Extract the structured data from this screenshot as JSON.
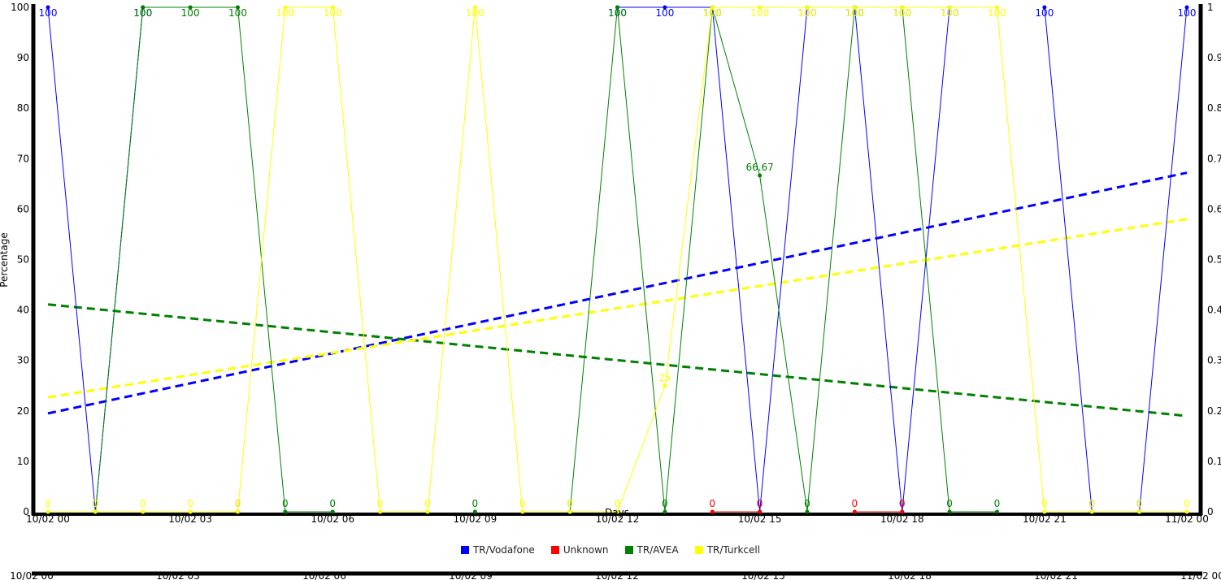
{
  "chart_data": {
    "type": "line",
    "ylabel": "Percentage",
    "xlabel": "Days",
    "ylim": [
      0,
      100
    ],
    "y2lim": [
      0,
      1
    ],
    "yticks": [
      0,
      10,
      20,
      30,
      40,
      50,
      60,
      70,
      80,
      90,
      100
    ],
    "y2ticks": [
      "0",
      "0.1",
      "0.2",
      "0.3",
      "0.4",
      "0.5",
      "0.6",
      "0.7",
      "0.8",
      "0.9",
      "1"
    ],
    "x_tick_labels": [
      "10/02 00",
      "10/02 03",
      "10/02 06",
      "10/02 09",
      "10/02 12",
      "10/02 15",
      "10/02 18",
      "10/02 21",
      "11/02 00"
    ],
    "x_hours": [
      0,
      1,
      2,
      3,
      4,
      5,
      6,
      7,
      8,
      9,
      10,
      11,
      12,
      13,
      14,
      15,
      16,
      17,
      18,
      19,
      20,
      21,
      22,
      23,
      24
    ],
    "grid": false,
    "legend_position": "bottom-center",
    "series": [
      {
        "name": "TR/Vodafone",
        "color": "#0000ff",
        "values": [
          100,
          0,
          100,
          null,
          0,
          null,
          null,
          null,
          null,
          null,
          null,
          null,
          100,
          100,
          100,
          0,
          100,
          100,
          0,
          100,
          null,
          100,
          0,
          0,
          100
        ],
        "trend": [
          19.5,
          67.2
        ]
      },
      {
        "name": "Unknown",
        "color": "#ff0000",
        "values": [
          null,
          null,
          null,
          null,
          null,
          null,
          null,
          null,
          null,
          null,
          null,
          null,
          null,
          null,
          0,
          0,
          null,
          0,
          0,
          null,
          null,
          null,
          null,
          null,
          null
        ]
      },
      {
        "name": "TR/AVEA",
        "color": "#008000",
        "values": [
          null,
          0,
          100,
          100,
          100,
          0,
          0,
          null,
          null,
          0,
          null,
          0,
          100,
          0,
          100,
          66.67,
          0,
          100,
          100,
          0,
          0,
          null,
          null,
          null,
          null
        ],
        "trend": [
          41.1,
          19.0
        ]
      },
      {
        "name": "TR/Turkcell",
        "color": "#ffff00",
        "values": [
          0,
          0,
          0,
          0,
          0,
          100,
          100,
          0,
          0,
          100,
          0,
          0,
          0,
          25,
          100,
          100,
          100,
          100,
          100,
          100,
          100,
          0,
          0,
          0,
          0
        ],
        "trend": [
          22.7,
          58.0
        ]
      }
    ]
  }
}
